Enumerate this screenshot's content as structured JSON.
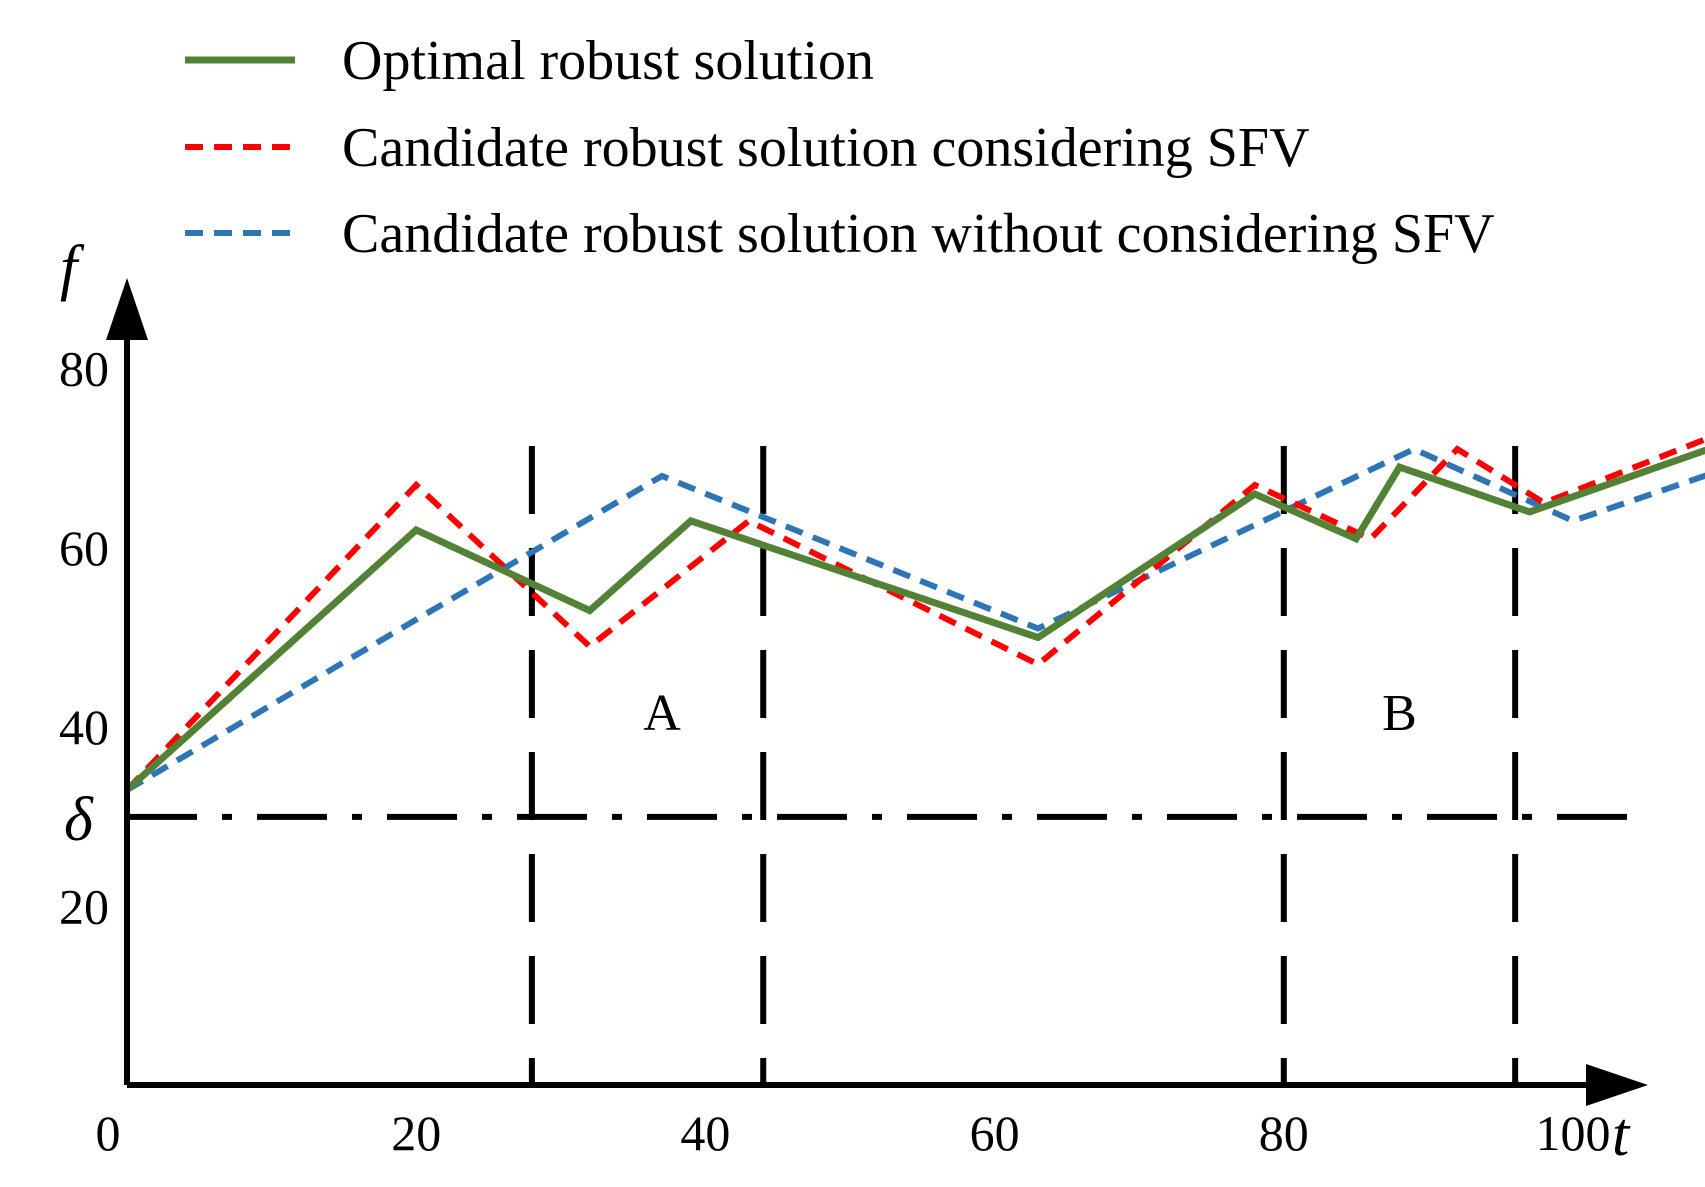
{
  "chart_data": {
    "type": "line",
    "title": "",
    "xlabel": "t",
    "ylabel": "f",
    "xlim": [
      0,
      118
    ],
    "ylim": [
      0,
      92
    ],
    "x_ticks": [
      {
        "value": 0,
        "label": "0"
      },
      {
        "value": 20,
        "label": "20"
      },
      {
        "value": 40,
        "label": "40"
      },
      {
        "value": 60,
        "label": "60"
      },
      {
        "value": 80,
        "label": "80"
      },
      {
        "value": 100,
        "label": "100"
      }
    ],
    "y_ticks": [
      {
        "value": 20,
        "label": "20"
      },
      {
        "value": 40,
        "label": "40"
      },
      {
        "value": 60,
        "label": "60"
      },
      {
        "value": 80,
        "label": "80"
      }
    ],
    "threshold": {
      "label": "δ",
      "value": 30,
      "style": "dash-dot"
    },
    "vertical_markers": [
      28,
      44,
      80,
      96
    ],
    "regions": [
      {
        "label": "A",
        "x": 37
      },
      {
        "label": "B",
        "x": 88
      }
    ],
    "legend_position": "top",
    "series": [
      {
        "name": "Optimal robust solution",
        "color": "#538135",
        "style": "solid",
        "x": [
          0,
          20,
          32,
          39,
          63,
          78,
          85,
          88,
          97,
          120
        ],
        "y": [
          33,
          62,
          53,
          63,
          50,
          66,
          61,
          69,
          64,
          77
        ]
      },
      {
        "name": "Candidate robust solution considering SFV",
        "color": "#ff0000",
        "style": "dashed",
        "x": [
          0,
          20,
          32,
          43,
          63,
          78,
          86,
          92,
          98,
          120
        ],
        "y": [
          33,
          67,
          49,
          63,
          47,
          67,
          61,
          71,
          65,
          79
        ]
      },
      {
        "name": "Candidate robust solution without considering SFV",
        "color": "#2e75b6",
        "style": "dashed",
        "x": [
          0,
          20,
          37,
          63,
          89,
          100,
          120
        ],
        "y": [
          33,
          52,
          68,
          51,
          71,
          63,
          74
        ]
      }
    ]
  }
}
